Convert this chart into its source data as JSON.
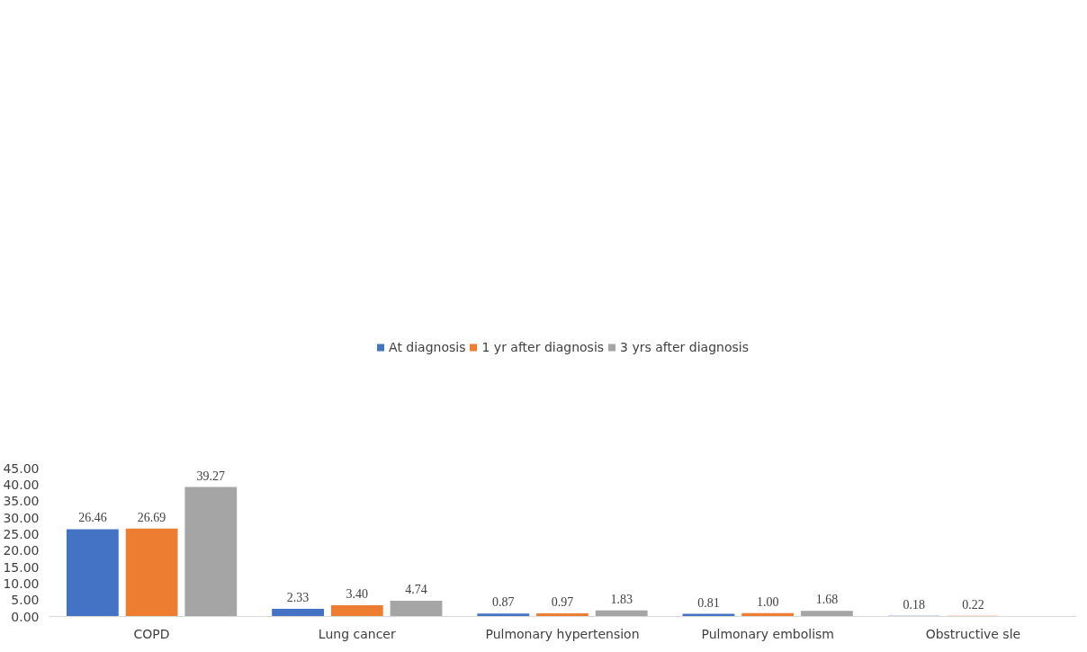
{
  "chart_data": {
    "type": "bar",
    "categories": [
      "COPD",
      "Lung cancer",
      "Pulmonary hypertension",
      "Pulmonary embolism",
      "Obstructive sle"
    ],
    "series": [
      {
        "name": "At diagnosis",
        "color": "#4472c4",
        "values": [
          26.46,
          2.33,
          0.87,
          0.81,
          0.18
        ],
        "value_labels": [
          "26.46",
          "2.33",
          "0.87",
          "0.81",
          "0.18"
        ]
      },
      {
        "name": "1 yr after diagnosis",
        "color": "#ed7d31",
        "values": [
          26.69,
          3.4,
          0.97,
          1.0,
          0.22
        ],
        "value_labels": [
          "26.69",
          "3.40",
          "0.97",
          "1.00",
          "0.22"
        ]
      },
      {
        "name": "3 yrs after diagnosis",
        "color": "#a5a5a5",
        "values": [
          39.27,
          4.74,
          1.83,
          1.68,
          null
        ],
        "value_labels": [
          "39.27",
          "4.74",
          "1.83",
          "1.68",
          null
        ]
      }
    ],
    "ylim": [
      0,
      45
    ],
    "yticks": [
      {
        "value": 0,
        "label": "0.00"
      },
      {
        "value": 5,
        "label": "5.00"
      },
      {
        "value": 10,
        "label": "10.00"
      },
      {
        "value": 15,
        "label": "15.00"
      },
      {
        "value": 20,
        "label": "20.00"
      },
      {
        "value": 25,
        "label": "25.00"
      },
      {
        "value": 30,
        "label": "30.00"
      },
      {
        "value": 35,
        "label": "35.00"
      },
      {
        "value": 40,
        "label": "40.00"
      },
      {
        "value": 45,
        "label": "45.00"
      }
    ],
    "grid": false,
    "legend": "top"
  }
}
